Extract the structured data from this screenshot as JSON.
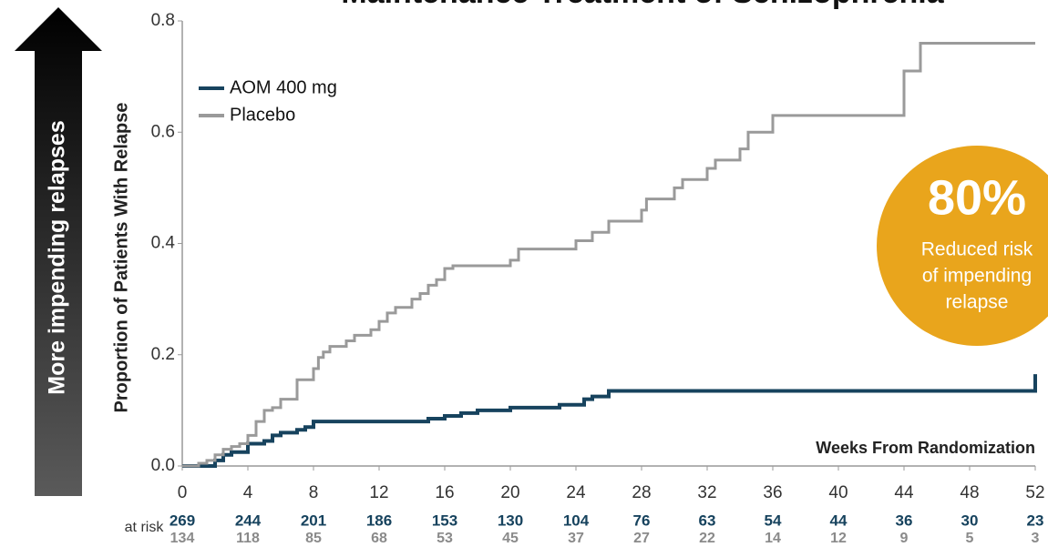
{
  "chart_data": {
    "type": "step",
    "title": "Maintenance Treatment of Schizophrenia",
    "arrow_label": "More impending relapses",
    "y_label": "Proportion of Patients With Relapse",
    "x_label": "Weeks From Randomization",
    "xlim": [
      0,
      52
    ],
    "ylim": [
      0,
      0.8
    ],
    "xticks": [
      0,
      4,
      8,
      12,
      16,
      20,
      24,
      28,
      32,
      36,
      40,
      44,
      48,
      52
    ],
    "yticks": [
      {
        "value": 0,
        "label": "0.0"
      },
      {
        "value": 0.2,
        "label": "0.2"
      },
      {
        "value": 0.4,
        "label": "0.4"
      },
      {
        "value": 0.6,
        "label": "0.6"
      },
      {
        "value": 0.8,
        "label": "0.8"
      }
    ],
    "legend": "upper left",
    "series": [
      {
        "name": "AOM 400 mg",
        "color": "#17435e",
        "width": 4,
        "x": [
          0,
          1.5,
          2,
          2.5,
          3,
          4,
          5,
          5.5,
          6,
          7,
          7.5,
          8,
          15,
          16,
          17,
          18,
          20,
          23,
          24.5,
          25,
          26,
          52,
          52
        ],
        "values": [
          0,
          0,
          0.01,
          0.02,
          0.025,
          0.04,
          0.045,
          0.055,
          0.06,
          0.065,
          0.07,
          0.08,
          0.085,
          0.09,
          0.095,
          0.1,
          0.105,
          0.11,
          0.12,
          0.125,
          0.135,
          0.135,
          0.165
        ]
      },
      {
        "name": "Placebo",
        "color": "#9a9a9a",
        "width": 3,
        "x": [
          0,
          1,
          1.5,
          2,
          2.5,
          3,
          3.5,
          4,
          4.5,
          5,
          5.5,
          6,
          7,
          8,
          8.3,
          8.6,
          9,
          10,
          10.5,
          11.5,
          12,
          12.5,
          13,
          14,
          14.5,
          15,
          15.5,
          16,
          16.5,
          20,
          20.5,
          24,
          25,
          26,
          28,
          28.3,
          30,
          30.5,
          32,
          32.5,
          34,
          34.5,
          36,
          44,
          45,
          52
        ],
        "values": [
          0,
          0.005,
          0.01,
          0.02,
          0.03,
          0.035,
          0.04,
          0.055,
          0.08,
          0.1,
          0.105,
          0.12,
          0.155,
          0.175,
          0.195,
          0.205,
          0.215,
          0.225,
          0.235,
          0.245,
          0.26,
          0.275,
          0.285,
          0.3,
          0.31,
          0.325,
          0.335,
          0.355,
          0.36,
          0.37,
          0.39,
          0.405,
          0.42,
          0.44,
          0.46,
          0.48,
          0.5,
          0.515,
          0.535,
          0.55,
          0.57,
          0.6,
          0.63,
          0.71,
          0.76,
          0.76
        ]
      }
    ],
    "at_risk": {
      "label": "at risk",
      "rows": [
        {
          "color": "#17435e",
          "values": [
            269,
            244,
            201,
            186,
            153,
            130,
            104,
            76,
            63,
            54,
            44,
            36,
            30,
            23
          ]
        },
        {
          "color": "#8a8a8a",
          "values": [
            134,
            118,
            85,
            68,
            53,
            45,
            37,
            27,
            22,
            14,
            12,
            9,
            5,
            3
          ]
        }
      ]
    },
    "annotation": {
      "color": "#e9a51c",
      "headline": "80%",
      "lines": [
        "Reduced risk",
        "of impending",
        "relapse"
      ]
    }
  }
}
